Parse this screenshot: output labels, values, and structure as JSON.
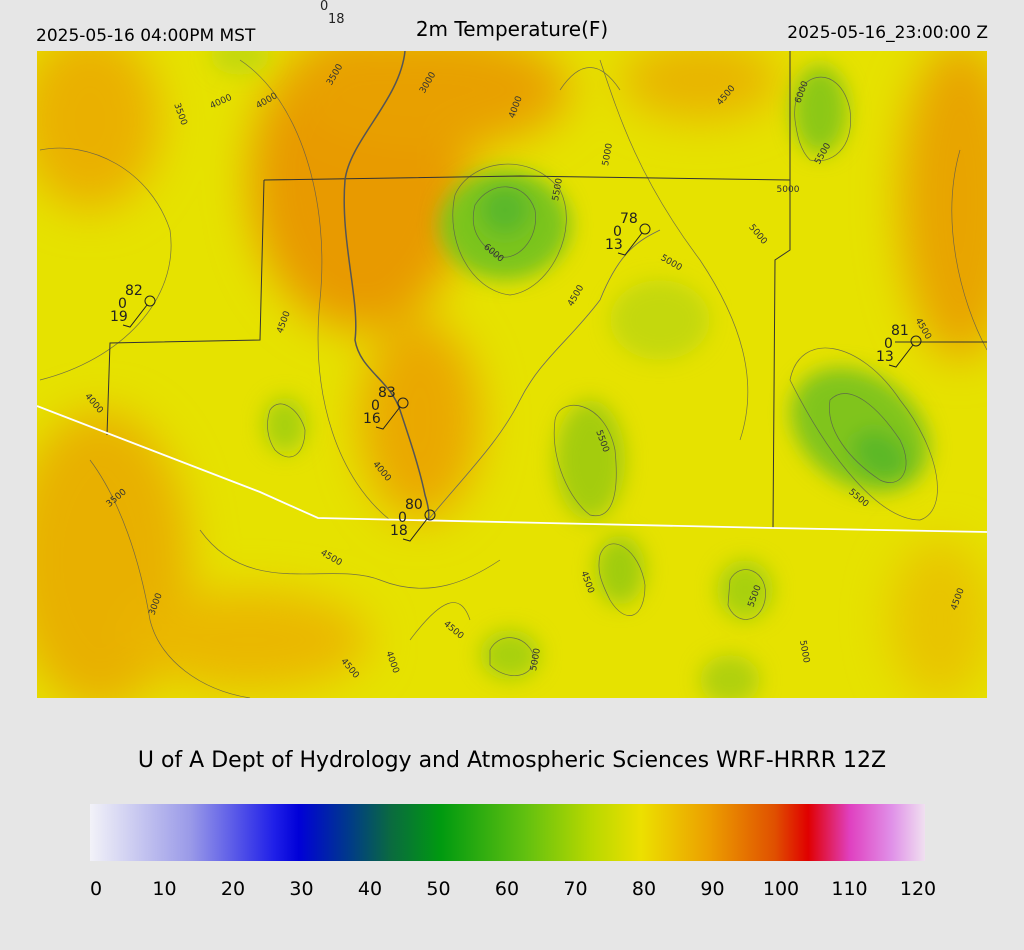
{
  "header": {
    "local_time": "2025-05-16 04:00PM MST",
    "title": "2m Temperature(F)",
    "utc_time": "2025-05-16_23:00:00 Z"
  },
  "map": {
    "stations": [
      {
        "temp": 82,
        "wind": 0,
        "dewpoint": 19
      },
      {
        "temp": 78,
        "wind": 0,
        "dewpoint": 13
      },
      {
        "temp": 81,
        "wind": 0,
        "dewpoint": 13
      },
      {
        "temp": 83,
        "wind": 0,
        "dewpoint": 16
      },
      {
        "temp": 80,
        "wind": 0,
        "dewpoint": 18
      }
    ],
    "offmap_station": {
      "wind": 0,
      "dewpoint": 18
    },
    "contour_labels": [
      3500,
      4000,
      4000,
      3500,
      3000,
      4000,
      4500,
      5000,
      6000,
      5500,
      5000,
      5500,
      6000,
      5000,
      5000,
      4000,
      4500,
      4500,
      4000,
      4500,
      3500,
      5500,
      4500,
      5500,
      5500,
      3000,
      4500,
      4000,
      4500,
      5000,
      5000,
      4500,
      4500
    ]
  },
  "footer": {
    "credit": "U of A Dept of Hydrology and Atmospheric Sciences WRF-HRRR 12Z"
  },
  "colorbar": {
    "range": [
      0,
      120
    ],
    "ticks": [
      0,
      10,
      20,
      30,
      40,
      50,
      60,
      70,
      80,
      90,
      100,
      110,
      120
    ]
  }
}
